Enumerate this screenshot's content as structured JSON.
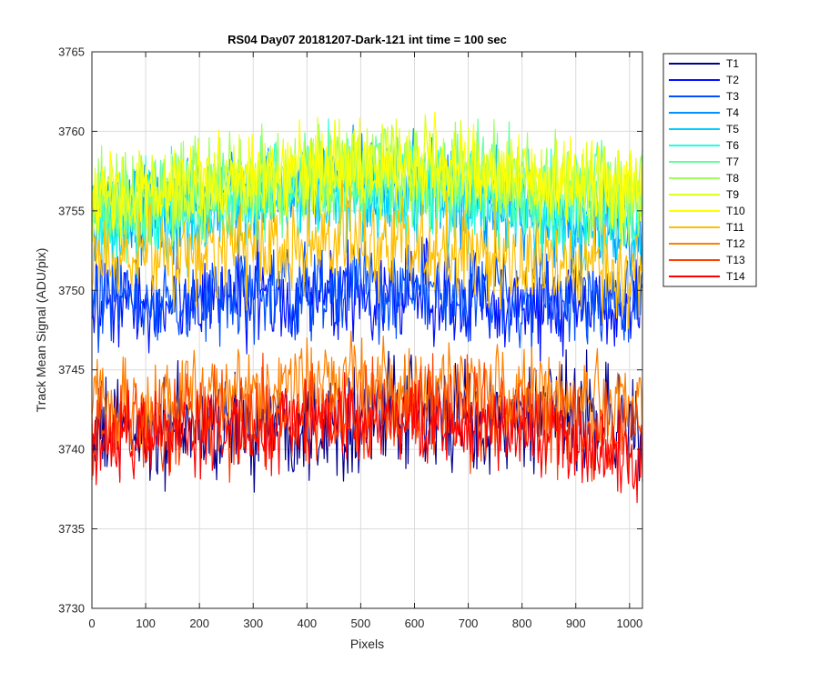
{
  "chart_data": {
    "type": "line",
    "title": "RS04 Day07 20181207-Dark-121 int time = 100 sec",
    "xlabel": "Pixels",
    "ylabel": "Track Mean Signal (ADU/pix)",
    "xlim": [
      0,
      1024
    ],
    "ylim": [
      3730,
      3765
    ],
    "xticks": [
      0,
      100,
      200,
      300,
      400,
      500,
      600,
      700,
      800,
      900,
      1000
    ],
    "yticks": [
      3730,
      3735,
      3740,
      3745,
      3750,
      3755,
      3760,
      3765
    ],
    "grid": true,
    "legend_position": "outside-right",
    "profile_x": [
      0,
      100,
      200,
      300,
      400,
      500,
      600,
      700,
      800,
      900,
      1000,
      1024
    ],
    "series": [
      {
        "name": "T1",
        "color": "#00008F",
        "noise": 1.7,
        "values": [
          3741.0,
          3741.0,
          3741.3,
          3741.5,
          3741.8,
          3742.0,
          3742.2,
          3742.0,
          3741.5,
          3742.5,
          3741.8,
          3741.5
        ]
      },
      {
        "name": "T2",
        "color": "#0010FF",
        "noise": 1.4,
        "values": [
          3749.0,
          3749.0,
          3749.5,
          3749.5,
          3749.5,
          3749.8,
          3749.8,
          3749.5,
          3749.0,
          3749.0,
          3749.0,
          3749.0
        ]
      },
      {
        "name": "T3",
        "color": "#0050FF",
        "noise": 1.4,
        "values": [
          3749.5,
          3749.2,
          3749.5,
          3749.8,
          3750.0,
          3750.2,
          3750.0,
          3749.8,
          3749.5,
          3749.5,
          3749.5,
          3749.5
        ]
      },
      {
        "name": "T4",
        "color": "#0090FF",
        "noise": 1.5,
        "values": [
          3754.5,
          3755.0,
          3755.5,
          3756.0,
          3756.5,
          3756.5,
          3756.5,
          3756.0,
          3755.0,
          3754.5,
          3754.0,
          3754.0
        ]
      },
      {
        "name": "T5",
        "color": "#00D0FF",
        "noise": 1.5,
        "values": [
          3754.0,
          3754.5,
          3755.0,
          3755.5,
          3756.0,
          3756.2,
          3756.0,
          3755.5,
          3755.0,
          3754.5,
          3754.0,
          3754.0
        ]
      },
      {
        "name": "T6",
        "color": "#20FFDF",
        "noise": 1.5,
        "values": [
          3754.5,
          3755.0,
          3755.5,
          3756.0,
          3756.5,
          3756.8,
          3756.5,
          3756.0,
          3755.5,
          3755.0,
          3754.5,
          3754.5
        ]
      },
      {
        "name": "T7",
        "color": "#60FF9F",
        "noise": 1.5,
        "values": [
          3755.0,
          3755.5,
          3756.0,
          3756.5,
          3757.0,
          3757.2,
          3757.0,
          3756.8,
          3756.5,
          3756.0,
          3755.5,
          3755.5
        ]
      },
      {
        "name": "T8",
        "color": "#9FFF60",
        "noise": 1.5,
        "values": [
          3755.5,
          3756.0,
          3756.5,
          3757.0,
          3757.5,
          3757.8,
          3757.8,
          3757.5,
          3757.0,
          3756.5,
          3756.0,
          3756.0
        ]
      },
      {
        "name": "T9",
        "color": "#DFFF20",
        "noise": 1.4,
        "values": [
          3755.5,
          3756.0,
          3756.5,
          3757.0,
          3757.5,
          3757.8,
          3757.8,
          3757.5,
          3757.0,
          3756.5,
          3756.0,
          3756.0
        ]
      },
      {
        "name": "T10",
        "color": "#FFFF00",
        "noise": 1.3,
        "values": [
          3755.8,
          3756.2,
          3756.8,
          3757.2,
          3757.6,
          3758.0,
          3758.0,
          3757.6,
          3757.2,
          3756.8,
          3756.5,
          3756.5
        ]
      },
      {
        "name": "T11",
        "color": "#FFBF00",
        "noise": 1.5,
        "values": [
          3752.0,
          3752.0,
          3752.5,
          3752.8,
          3753.0,
          3753.0,
          3752.8,
          3752.5,
          3752.0,
          3751.8,
          3751.5,
          3751.5
        ]
      },
      {
        "name": "T12",
        "color": "#FF7F00",
        "noise": 1.5,
        "values": [
          3743.0,
          3743.0,
          3743.3,
          3743.5,
          3743.8,
          3744.0,
          3744.0,
          3743.8,
          3743.3,
          3743.0,
          3742.5,
          3742.5
        ]
      },
      {
        "name": "T13",
        "color": "#FF4000",
        "noise": 1.5,
        "values": [
          3741.5,
          3741.5,
          3742.0,
          3742.2,
          3742.5,
          3742.5,
          3742.5,
          3742.2,
          3742.0,
          3741.5,
          3741.0,
          3741.0
        ]
      },
      {
        "name": "T14",
        "color": "#FF0000",
        "noise": 1.3,
        "values": [
          3740.5,
          3740.5,
          3741.0,
          3741.2,
          3741.5,
          3741.8,
          3741.8,
          3741.5,
          3741.0,
          3740.5,
          3739.0,
          3738.5
        ]
      }
    ]
  }
}
